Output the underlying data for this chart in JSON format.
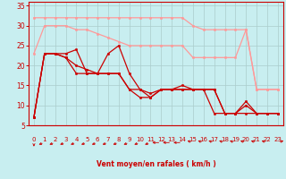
{
  "xlabel": "Vent moyen/en rafales ( km/h )",
  "background_color": "#c8eef0",
  "grid_color": "#aacccc",
  "x_ticks": [
    0,
    1,
    2,
    3,
    4,
    5,
    6,
    7,
    8,
    9,
    10,
    11,
    12,
    13,
    14,
    15,
    16,
    17,
    18,
    19,
    20,
    21,
    22,
    23
  ],
  "y_ticks": [
    5,
    10,
    15,
    20,
    25,
    30,
    35
  ],
  "xlim": [
    -0.5,
    23.5
  ],
  "ylim": [
    5,
    36
  ],
  "series": [
    {
      "x": [
        0,
        1,
        2,
        3,
        4,
        5,
        6,
        7,
        8,
        9,
        10,
        11,
        12,
        13,
        14,
        15,
        16,
        17,
        18,
        19,
        20,
        21,
        22,
        23
      ],
      "y": [
        32,
        32,
        32,
        32,
        32,
        32,
        32,
        32,
        32,
        32,
        32,
        32,
        32,
        32,
        32,
        30,
        29,
        29,
        29,
        29,
        29,
        14,
        14,
        14
      ],
      "color": "#ff9999",
      "lw": 0.9,
      "marker": "o",
      "ms": 1.8
    },
    {
      "x": [
        0,
        1,
        2,
        3,
        4,
        5,
        6,
        7,
        8,
        9,
        10,
        11,
        12,
        13,
        14,
        15,
        16,
        17,
        18,
        19,
        20,
        21,
        22,
        23
      ],
      "y": [
        23,
        30,
        30,
        30,
        29,
        29,
        28,
        27,
        26,
        25,
        25,
        25,
        25,
        25,
        25,
        22,
        22,
        22,
        22,
        22,
        29,
        14,
        14,
        14
      ],
      "color": "#ff9999",
      "lw": 0.9,
      "marker": "o",
      "ms": 1.8
    },
    {
      "x": [
        0,
        1,
        2,
        3,
        4,
        5,
        6,
        7,
        8,
        9,
        10,
        11,
        12,
        13,
        14,
        15,
        16,
        17,
        18,
        19,
        20,
        21,
        22,
        23
      ],
      "y": [
        7,
        23,
        23,
        23,
        24,
        18,
        18,
        23,
        25,
        18,
        14,
        12,
        14,
        14,
        14,
        14,
        14,
        14,
        8,
        8,
        11,
        8,
        8,
        8
      ],
      "color": "#cc0000",
      "lw": 0.9,
      "marker": "o",
      "ms": 1.8
    },
    {
      "x": [
        0,
        1,
        2,
        3,
        4,
        5,
        6,
        7,
        8,
        9,
        10,
        11,
        12,
        13,
        14,
        15,
        16,
        17,
        18,
        19,
        20,
        21,
        22,
        23
      ],
      "y": [
        7,
        23,
        23,
        22,
        18,
        18,
        18,
        18,
        18,
        14,
        12,
        12,
        14,
        14,
        14,
        14,
        14,
        14,
        8,
        8,
        8,
        8,
        8,
        8
      ],
      "color": "#cc0000",
      "lw": 0.9,
      "marker": "o",
      "ms": 1.8
    },
    {
      "x": [
        0,
        1,
        2,
        3,
        4,
        5,
        6,
        7,
        8,
        9,
        10,
        11,
        12,
        13,
        14,
        15,
        16,
        17,
        18,
        19,
        20,
        21,
        22,
        23
      ],
      "y": [
        7,
        23,
        23,
        22,
        20,
        19,
        18,
        18,
        18,
        14,
        14,
        13,
        14,
        14,
        15,
        14,
        14,
        8,
        8,
        8,
        10,
        8,
        8,
        8
      ],
      "color": "#cc0000",
      "lw": 0.9,
      "marker": "o",
      "ms": 1.8
    }
  ],
  "arrow_directions": [
    180,
    225,
    225,
    225,
    225,
    225,
    225,
    225,
    225,
    225,
    225,
    225,
    270,
    270,
    270,
    315,
    315,
    315,
    315,
    315,
    315,
    315,
    315,
    45
  ]
}
